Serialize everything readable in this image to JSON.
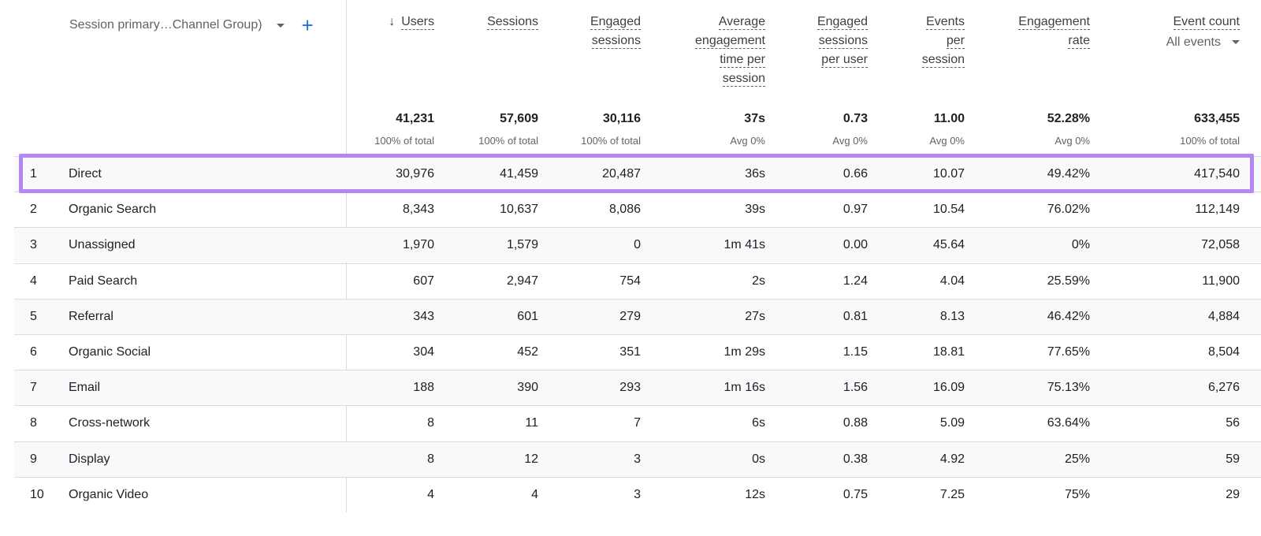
{
  "dimension": {
    "label": "Session primary…Channel Group)"
  },
  "columns": [
    {
      "key": "users",
      "lines": [
        "Users"
      ],
      "sorted": true
    },
    {
      "key": "sessions",
      "lines": [
        "Sessions"
      ]
    },
    {
      "key": "engaged_sessions",
      "lines": [
        "Engaged",
        "sessions"
      ]
    },
    {
      "key": "avg_engagement",
      "lines": [
        "Average",
        "engagement",
        "time per",
        "session"
      ]
    },
    {
      "key": "engaged_per_user",
      "lines": [
        "Engaged",
        "sessions",
        "per user"
      ]
    },
    {
      "key": "events_per_session",
      "lines": [
        "Events",
        "per",
        "session"
      ]
    },
    {
      "key": "engagement_rate",
      "lines": [
        "Engagement",
        "rate"
      ]
    },
    {
      "key": "event_count",
      "lines": [
        "Event count"
      ],
      "selector": "All events"
    }
  ],
  "totals": [
    {
      "value": "41,231",
      "sub": "100% of total"
    },
    {
      "value": "57,609",
      "sub": "100% of total"
    },
    {
      "value": "30,116",
      "sub": "100% of total"
    },
    {
      "value": "37s",
      "sub": "Avg 0%"
    },
    {
      "value": "0.73",
      "sub": "Avg 0%"
    },
    {
      "value": "11.00",
      "sub": "Avg 0%"
    },
    {
      "value": "52.28%",
      "sub": "Avg 0%"
    },
    {
      "value": "633,455",
      "sub": "100% of total"
    }
  ],
  "rows": [
    {
      "rank": "1",
      "channel": "Direct",
      "values": [
        "30,976",
        "41,459",
        "20,487",
        "36s",
        "0.66",
        "10.07",
        "49.42%",
        "417,540"
      ]
    },
    {
      "rank": "2",
      "channel": "Organic Search",
      "values": [
        "8,343",
        "10,637",
        "8,086",
        "39s",
        "0.97",
        "10.54",
        "76.02%",
        "112,149"
      ]
    },
    {
      "rank": "3",
      "channel": "Unassigned",
      "values": [
        "1,970",
        "1,579",
        "0",
        "1m 41s",
        "0.00",
        "45.64",
        "0%",
        "72,058"
      ]
    },
    {
      "rank": "4",
      "channel": "Paid Search",
      "values": [
        "607",
        "2,947",
        "754",
        "2s",
        "1.24",
        "4.04",
        "25.59%",
        "11,900"
      ]
    },
    {
      "rank": "5",
      "channel": "Referral",
      "values": [
        "343",
        "601",
        "279",
        "27s",
        "0.81",
        "8.13",
        "46.42%",
        "4,884"
      ]
    },
    {
      "rank": "6",
      "channel": "Organic Social",
      "values": [
        "304",
        "452",
        "351",
        "1m 29s",
        "1.15",
        "18.81",
        "77.65%",
        "8,504"
      ]
    },
    {
      "rank": "7",
      "channel": "Email",
      "values": [
        "188",
        "390",
        "293",
        "1m 16s",
        "1.56",
        "16.09",
        "75.13%",
        "6,276"
      ]
    },
    {
      "rank": "8",
      "channel": "Cross-network",
      "values": [
        "8",
        "11",
        "7",
        "6s",
        "0.88",
        "5.09",
        "63.64%",
        "56"
      ]
    },
    {
      "rank": "9",
      "channel": "Display",
      "values": [
        "8",
        "12",
        "3",
        "0s",
        "0.38",
        "4.92",
        "25%",
        "59"
      ]
    },
    {
      "rank": "10",
      "channel": "Organic Video",
      "values": [
        "4",
        "4",
        "3",
        "12s",
        "0.75",
        "7.25",
        "75%",
        "29"
      ]
    }
  ],
  "highlight": {
    "row_index": 0,
    "color": "#b388f5"
  }
}
